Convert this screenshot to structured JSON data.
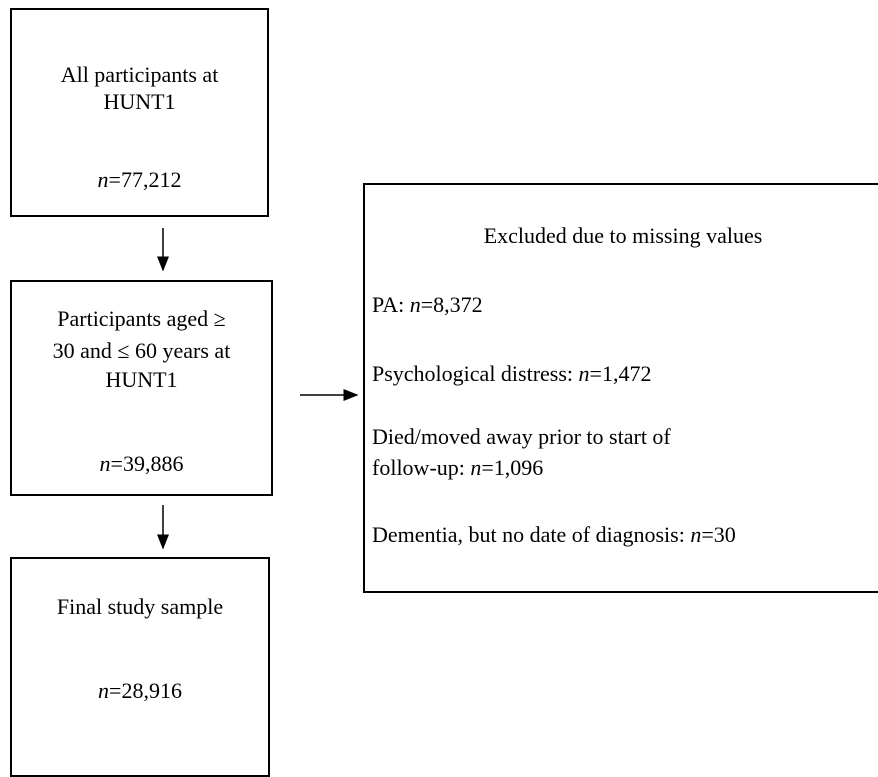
{
  "boxes": [
    {
      "lines": [
        "All participants at",
        "HUNT1"
      ],
      "count": "n=77,212"
    },
    {
      "lines": [
        "Participants aged ≥",
        "30 and ≤ 60 years at",
        "HUNT1"
      ],
      "count": "n=39,886"
    },
    {
      "lines": [
        "Final study sample"
      ],
      "count": "n=28,916"
    }
  ],
  "exclusions": {
    "title": "Excluded due to missing values",
    "items": [
      {
        "lines": [
          "PA:"
        ],
        "count": "n=8,372"
      },
      {
        "lines": [
          "Psychological distress:"
        ],
        "count": "n=1,472"
      },
      {
        "lines": [
          "Died/moved away prior to start of",
          "follow-up:"
        ],
        "count": "n=1,096"
      },
      {
        "lines": [
          "Dementia, but no date of diagnosis:"
        ],
        "count": "n=30"
      }
    ]
  }
}
